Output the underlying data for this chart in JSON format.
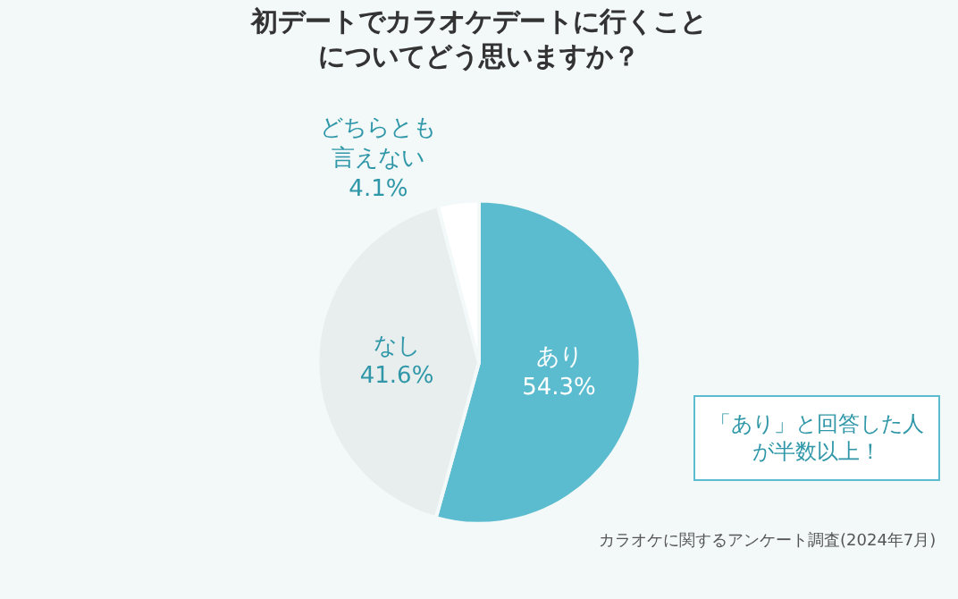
{
  "chart_data": {
    "type": "pie",
    "title": "初デートでカラオケデートに行くことについてどう思いますか？",
    "categories": [
      "あり",
      "なし",
      "どちらとも言えない"
    ],
    "values": [
      54.3,
      41.6,
      4.1
    ],
    "value_labels": [
      "54.3%",
      "41.6%",
      "4.1%"
    ],
    "colors": [
      "#5bbccf",
      "#e8eeee",
      "#ffffff"
    ],
    "legend": false,
    "annotations": [
      "「あり」と回答した人が半数以上！",
      "カラオケに関するアンケート調査(2024年7月)"
    ]
  }
}
